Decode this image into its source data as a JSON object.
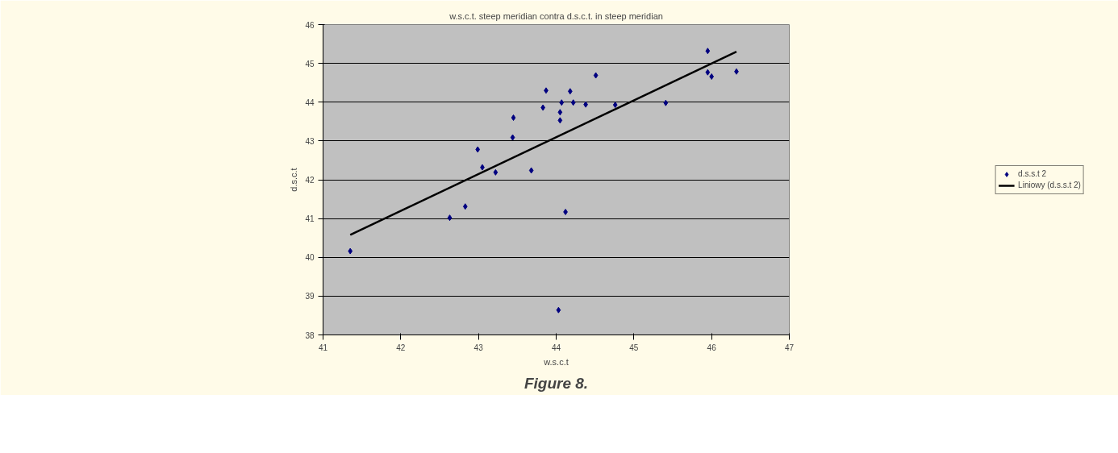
{
  "chart_data": {
    "type": "scatter",
    "title": "w.s.c.t. steep meridian contra d.s.c.t. in steep meridian",
    "xlabel": "w.s.c.t",
    "ylabel": "d.s.c.t",
    "annotations": [
      "Figure 8."
    ],
    "xlim": [
      41,
      47
    ],
    "ylim": [
      38,
      46
    ],
    "xticks": [
      41,
      42,
      43,
      44,
      45,
      46,
      47
    ],
    "yticks": [
      38,
      39,
      40,
      41,
      42,
      43,
      44,
      45,
      46
    ],
    "grid": "y",
    "legend": "right",
    "marker": "diamond",
    "series": [
      {
        "name": "d.s.s.t 2",
        "color": "#000080",
        "x": [
          41.35,
          42.63,
          42.83,
          42.99,
          43.05,
          43.22,
          43.44,
          43.45,
          43.68,
          43.83,
          43.87,
          44.05,
          44.05,
          44.07,
          44.03,
          44.12,
          44.18,
          44.22,
          44.38,
          44.51,
          44.76,
          45.41,
          45.95,
          45.95,
          46.0,
          46.32
        ],
        "values": [
          40.16,
          41.02,
          41.31,
          42.78,
          42.32,
          42.19,
          43.09,
          43.6,
          42.24,
          43.86,
          44.3,
          43.74,
          43.53,
          43.99,
          38.64,
          41.17,
          44.28,
          43.99,
          43.94,
          44.69,
          43.93,
          43.98,
          45.32,
          44.77,
          44.66,
          44.79
        ]
      },
      {
        "name": "Liniowy (d.s.s.t 2)",
        "type": "line",
        "marker": "none",
        "color": "#000000",
        "x": [
          41.35,
          46.32
        ],
        "values": [
          40.58,
          45.3
        ]
      }
    ]
  }
}
